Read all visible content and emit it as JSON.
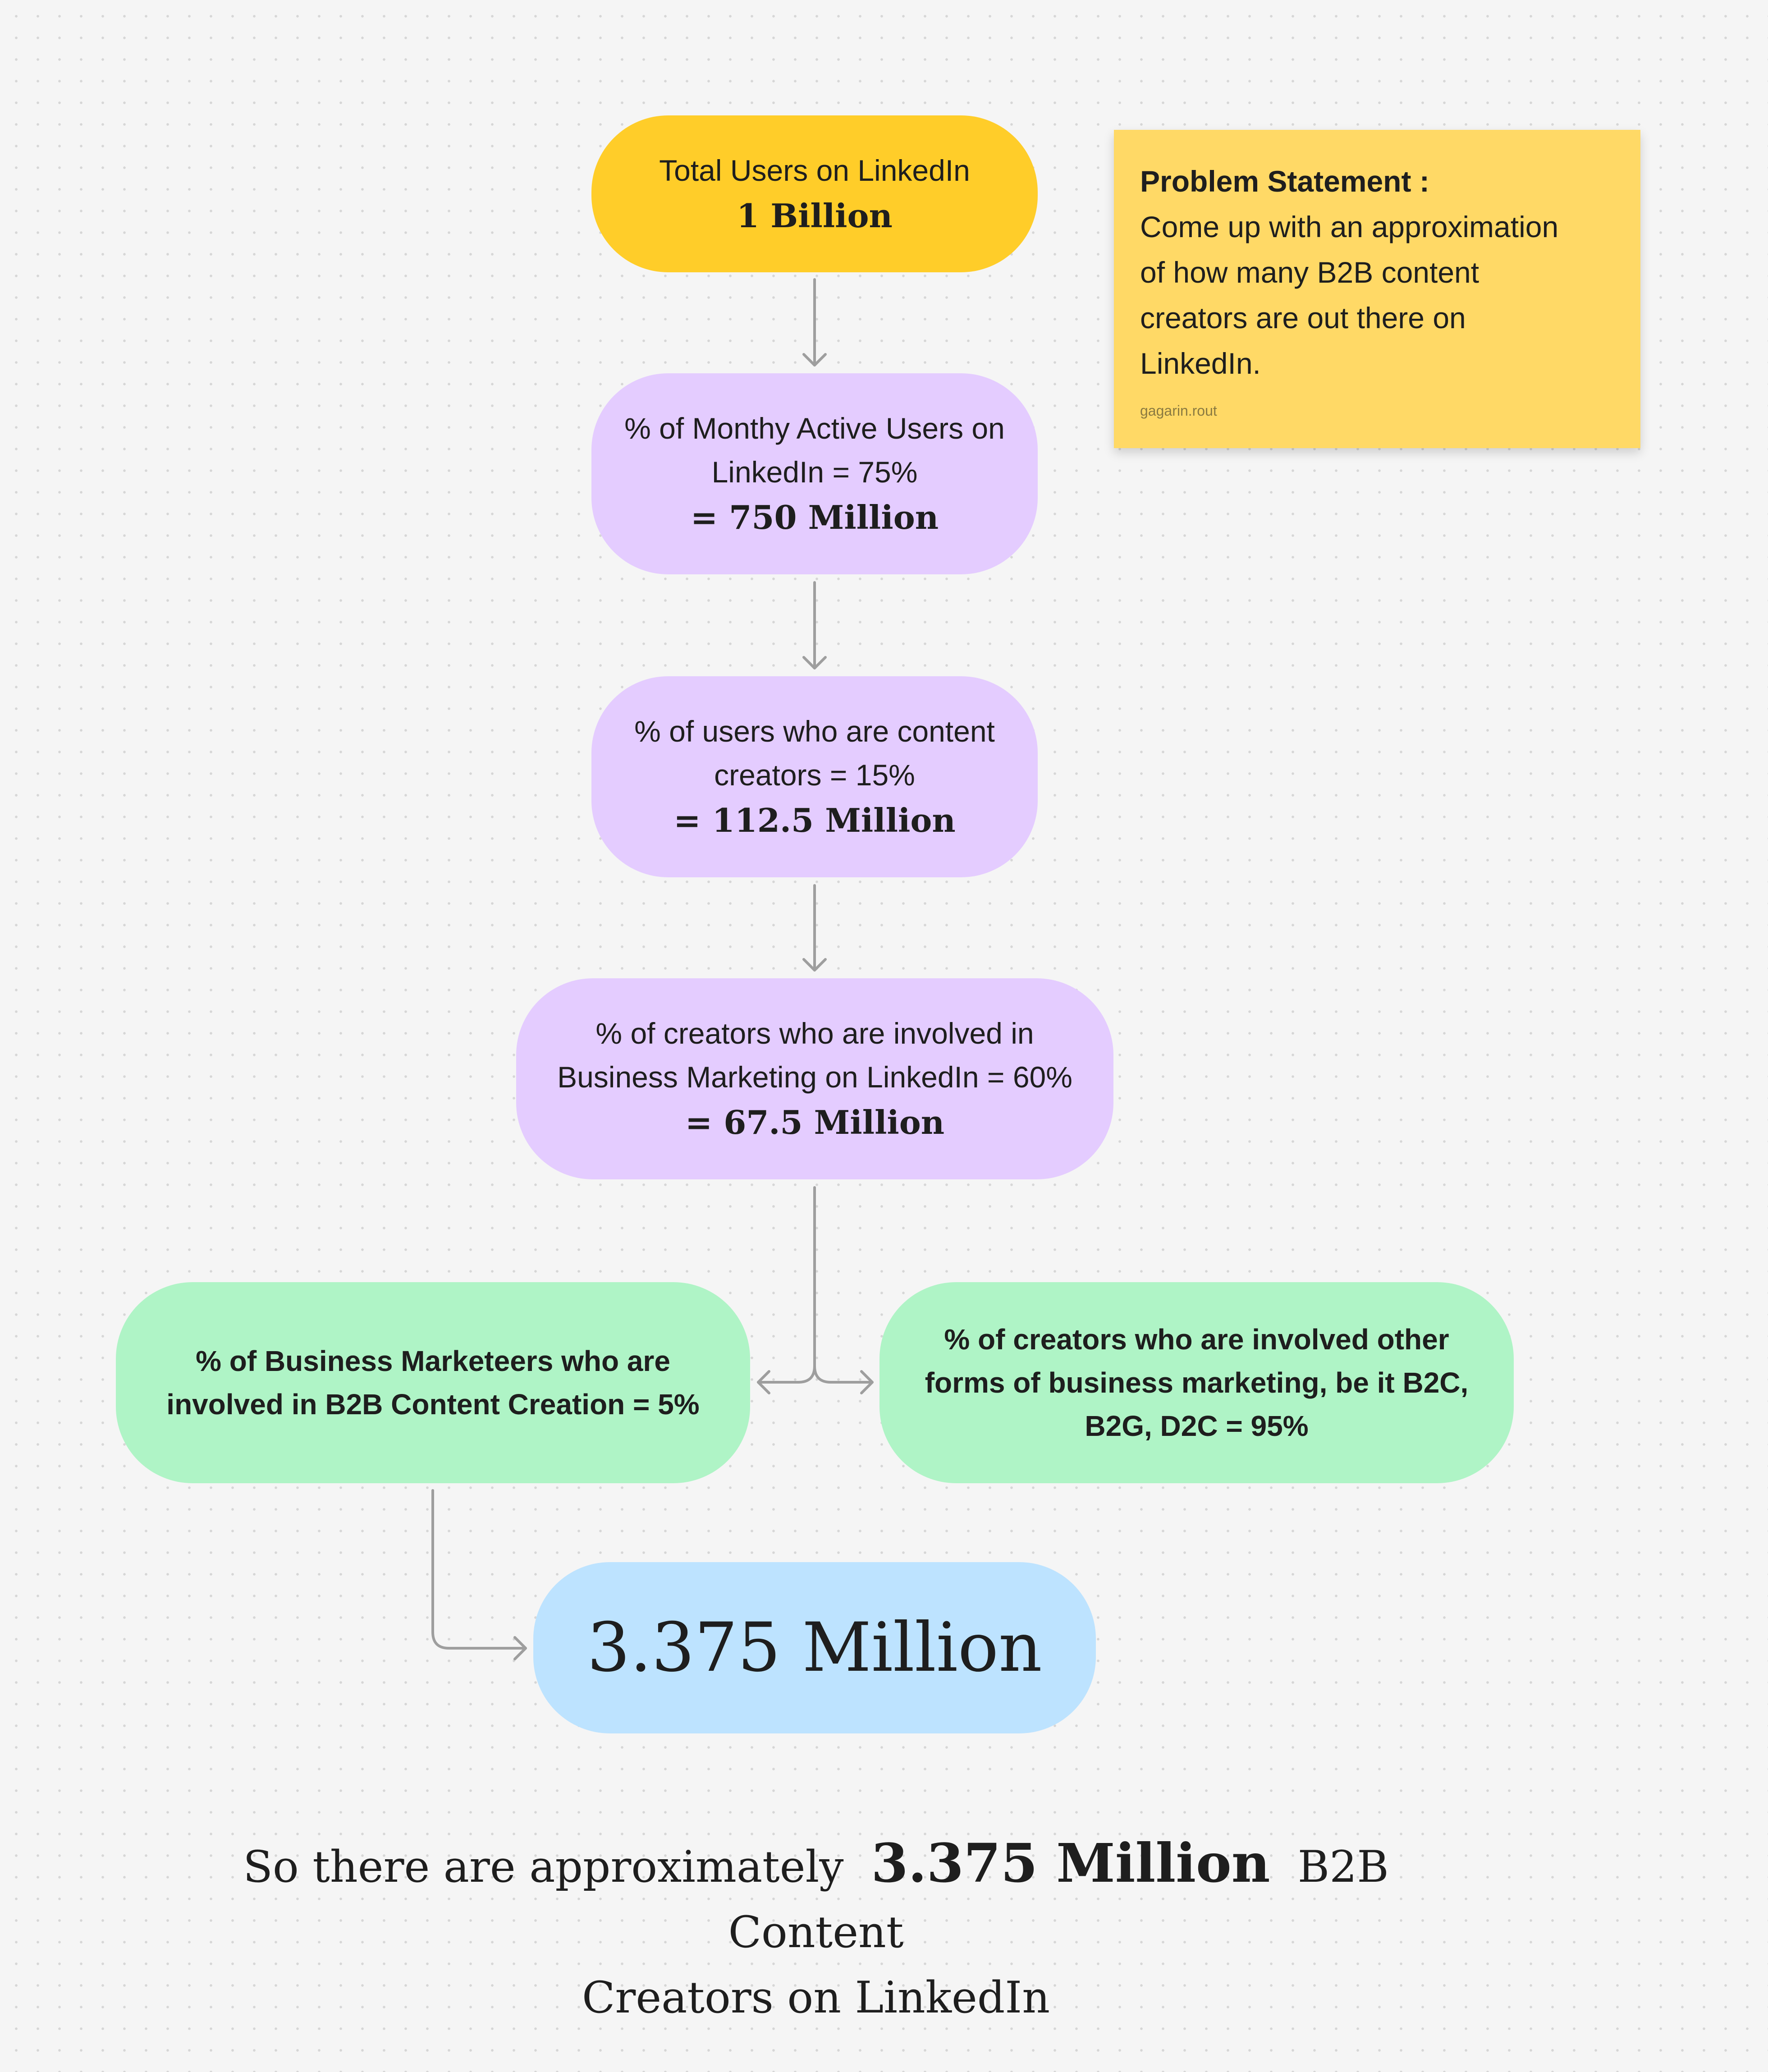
{
  "nodes": {
    "total_users": {
      "title": "Total Users on LinkedIn",
      "value": "1 Billion"
    },
    "monthly_active": {
      "line1": "% of Monthy Active Users on",
      "line2": "LinkedIn = 75%",
      "value": "= 750 Million"
    },
    "content_creators": {
      "line1": "% of users who are content",
      "line2": "creators = 15%",
      "value": "= 112.5 Million"
    },
    "business_marketing": {
      "line1": "% of creators who are involved in",
      "line2": "Business Marketing on LinkedIn = 60%",
      "value": "= 67.5 Million"
    },
    "b2b_creation": {
      "line1": "% of Business Marketeers who are",
      "line2": "involved in B2B Content Creation = 5%"
    },
    "other_marketing": {
      "line1": "% of creators who are involved other",
      "line2": "forms of business marketing, be it B2C,",
      "line3": "B2G, D2C = 95%"
    },
    "result": {
      "value": "3.375 Million"
    }
  },
  "sticky_note": {
    "heading": "Problem Statement :",
    "lines": [
      "Come up with an approximation",
      "of how many B2B content",
      "creators are out there on",
      "LinkedIn."
    ],
    "author": "gagarin.rout"
  },
  "summary": {
    "prefix": "So there are approximately",
    "highlight": "3.375 Million",
    "suffix": "B2B Content",
    "line2": "Creators on LinkedIn"
  },
  "colors": {
    "yellow": "#ffcd29",
    "purple": "#e4ccff",
    "green": "#aff4c6",
    "blue": "#bde3ff",
    "sticky": "#ffd966",
    "connector": "#9e9e9e",
    "background": "#f5f5f5"
  }
}
